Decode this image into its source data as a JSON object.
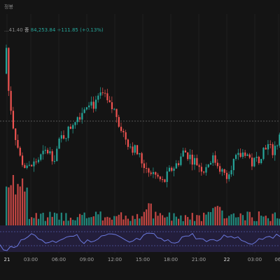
{
  "header": {
    "symbol_fragment": "...41.40",
    "price_label": "종",
    "price": "84,253.84",
    "change": "+111.85 (+0.13%)",
    "small_label": "정봉"
  },
  "x_axis": [
    "21",
    "03:00",
    "06:00",
    "09:00",
    "12:00",
    "15:00",
    "18:00",
    "21:00",
    "22",
    "03:00",
    "06:"
  ],
  "colors": {
    "up": "#26a69a",
    "down": "#ef5350",
    "rsi": "#6c7ae0",
    "background": "#141414"
  },
  "chart_data": {
    "type": "candlestick",
    "candles_close_trend": [
      86200,
      85400,
      84900,
      84700,
      84800,
      84900,
      85000,
      84900,
      85200,
      85300,
      85500,
      85600,
      85800,
      85700,
      85900,
      85700,
      85600,
      85300,
      85100,
      85000,
      84800,
      84700,
      84600,
      84500,
      84700,
      84800,
      85000,
      84900,
      84800,
      84700,
      84900,
      84800,
      84600,
      84800,
      84900,
      85000,
      84800,
      84900,
      85100,
      85000,
      85200
    ]
  }
}
